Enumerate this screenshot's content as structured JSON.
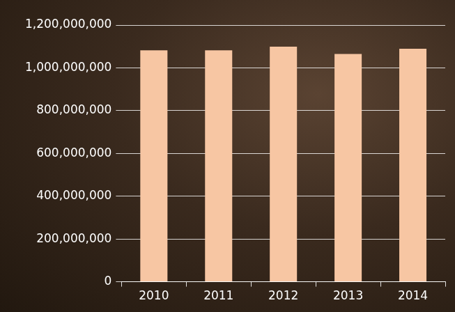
{
  "chart_data": {
    "type": "bar",
    "categories": [
      "2010",
      "2011",
      "2012",
      "2013",
      "2014"
    ],
    "values": [
      1082000000,
      1082000000,
      1099000000,
      1065000000,
      1089000000
    ],
    "color": "#f7c6a3",
    "ylim": [
      0,
      1200000000
    ],
    "yticks": [
      0,
      {
        "value": 200000000,
        "label": "200,000,000"
      },
      {
        "value": 400000000,
        "label": "400,000,000"
      },
      {
        "value": 600000000,
        "label": "600,000,000"
      },
      {
        "value": 800000000,
        "label": "800,000,000"
      },
      {
        "value": 1000000000,
        "label": "1,000,000,000"
      },
      {
        "value": 1200000000,
        "label": "1,200,000,000"
      }
    ],
    "grid": true
  }
}
